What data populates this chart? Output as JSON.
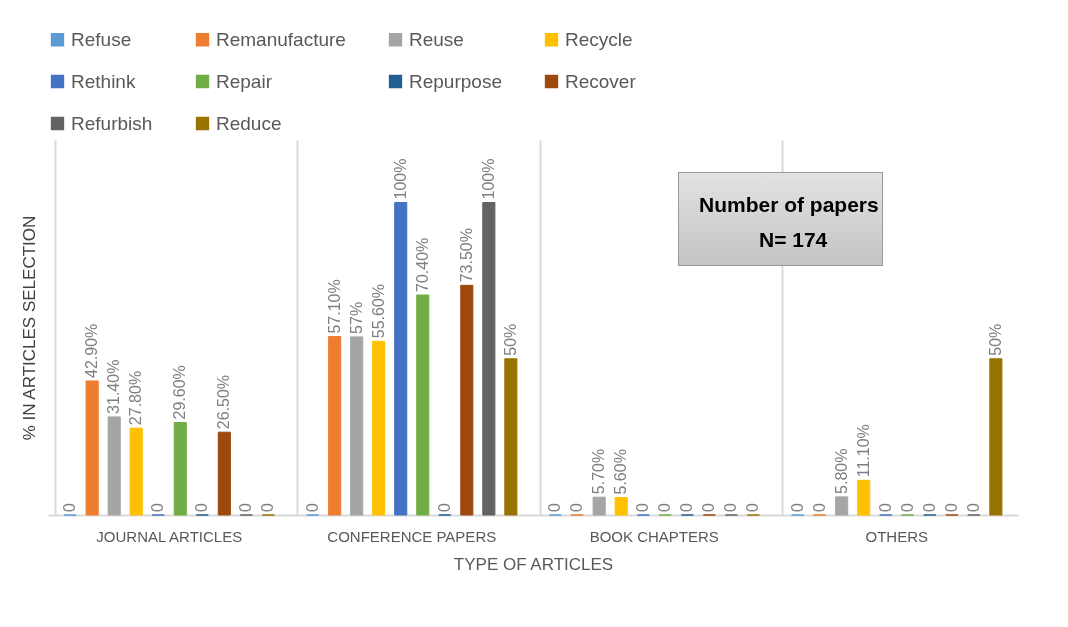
{
  "chart_data": {
    "type": "bar",
    "xlabel": "TYPE OF ARTICLES",
    "ylabel": "% IN ARTICLES SELECTION",
    "categories": [
      "JOURNAL ARTICLES",
      "CONFERENCE PAPERS",
      "BOOK CHAPTERS",
      "OTHERS"
    ],
    "series": [
      {
        "name": "Refuse",
        "color": "#5b9bd5",
        "values": [
          0,
          0,
          0,
          0
        ],
        "value_labels": [
          "0",
          "0",
          "0",
          "0"
        ]
      },
      {
        "name": "Remanufacture",
        "color": "#ed7d31",
        "values": [
          42.9,
          57.1,
          0,
          0
        ],
        "value_labels": [
          "42.90%",
          "57.10%",
          "0",
          "0"
        ]
      },
      {
        "name": "Reuse",
        "color": "#a5a5a5",
        "values": [
          31.4,
          57,
          5.7,
          5.8
        ],
        "value_labels": [
          "31.40%",
          "57%",
          "5.70%",
          "5.80%"
        ]
      },
      {
        "name": "Recycle",
        "color": "#ffc000",
        "values": [
          27.8,
          55.6,
          5.6,
          11.1
        ],
        "value_labels": [
          "27.80%",
          "55.60%",
          "5.60%",
          "11.10%"
        ]
      },
      {
        "name": "Rethink",
        "color": "#4472c4",
        "values": [
          0,
          100,
          0,
          0
        ],
        "value_labels": [
          "0",
          "100%",
          "0",
          "0"
        ]
      },
      {
        "name": "Repair",
        "color": "#70ad47",
        "values": [
          29.6,
          70.4,
          0,
          0
        ],
        "value_labels": [
          "29.60%",
          "70.40%",
          "0",
          "0"
        ]
      },
      {
        "name": "Repurpose",
        "color": "#255e91",
        "values": [
          0,
          0,
          0,
          0
        ],
        "value_labels": [
          "0",
          "0",
          "0",
          "0"
        ]
      },
      {
        "name": "Recover",
        "color": "#9e480e",
        "values": [
          26.5,
          73.5,
          0,
          0
        ],
        "value_labels": [
          "26.50%",
          "73.50%",
          "0",
          "0"
        ]
      },
      {
        "name": "Refurbish",
        "color": "#636363",
        "values": [
          0,
          100,
          0,
          0
        ],
        "value_labels": [
          "0",
          "100%",
          "0",
          "0"
        ]
      },
      {
        "name": "Reduce",
        "color": "#997300",
        "values": [
          0,
          50,
          0,
          50
        ],
        "value_labels": [
          "0",
          "50%",
          "0",
          "50%"
        ]
      }
    ],
    "annotations": [
      "Number of papers",
      "N= 174"
    ],
    "legend": "top",
    "tick_labels": "x"
  }
}
